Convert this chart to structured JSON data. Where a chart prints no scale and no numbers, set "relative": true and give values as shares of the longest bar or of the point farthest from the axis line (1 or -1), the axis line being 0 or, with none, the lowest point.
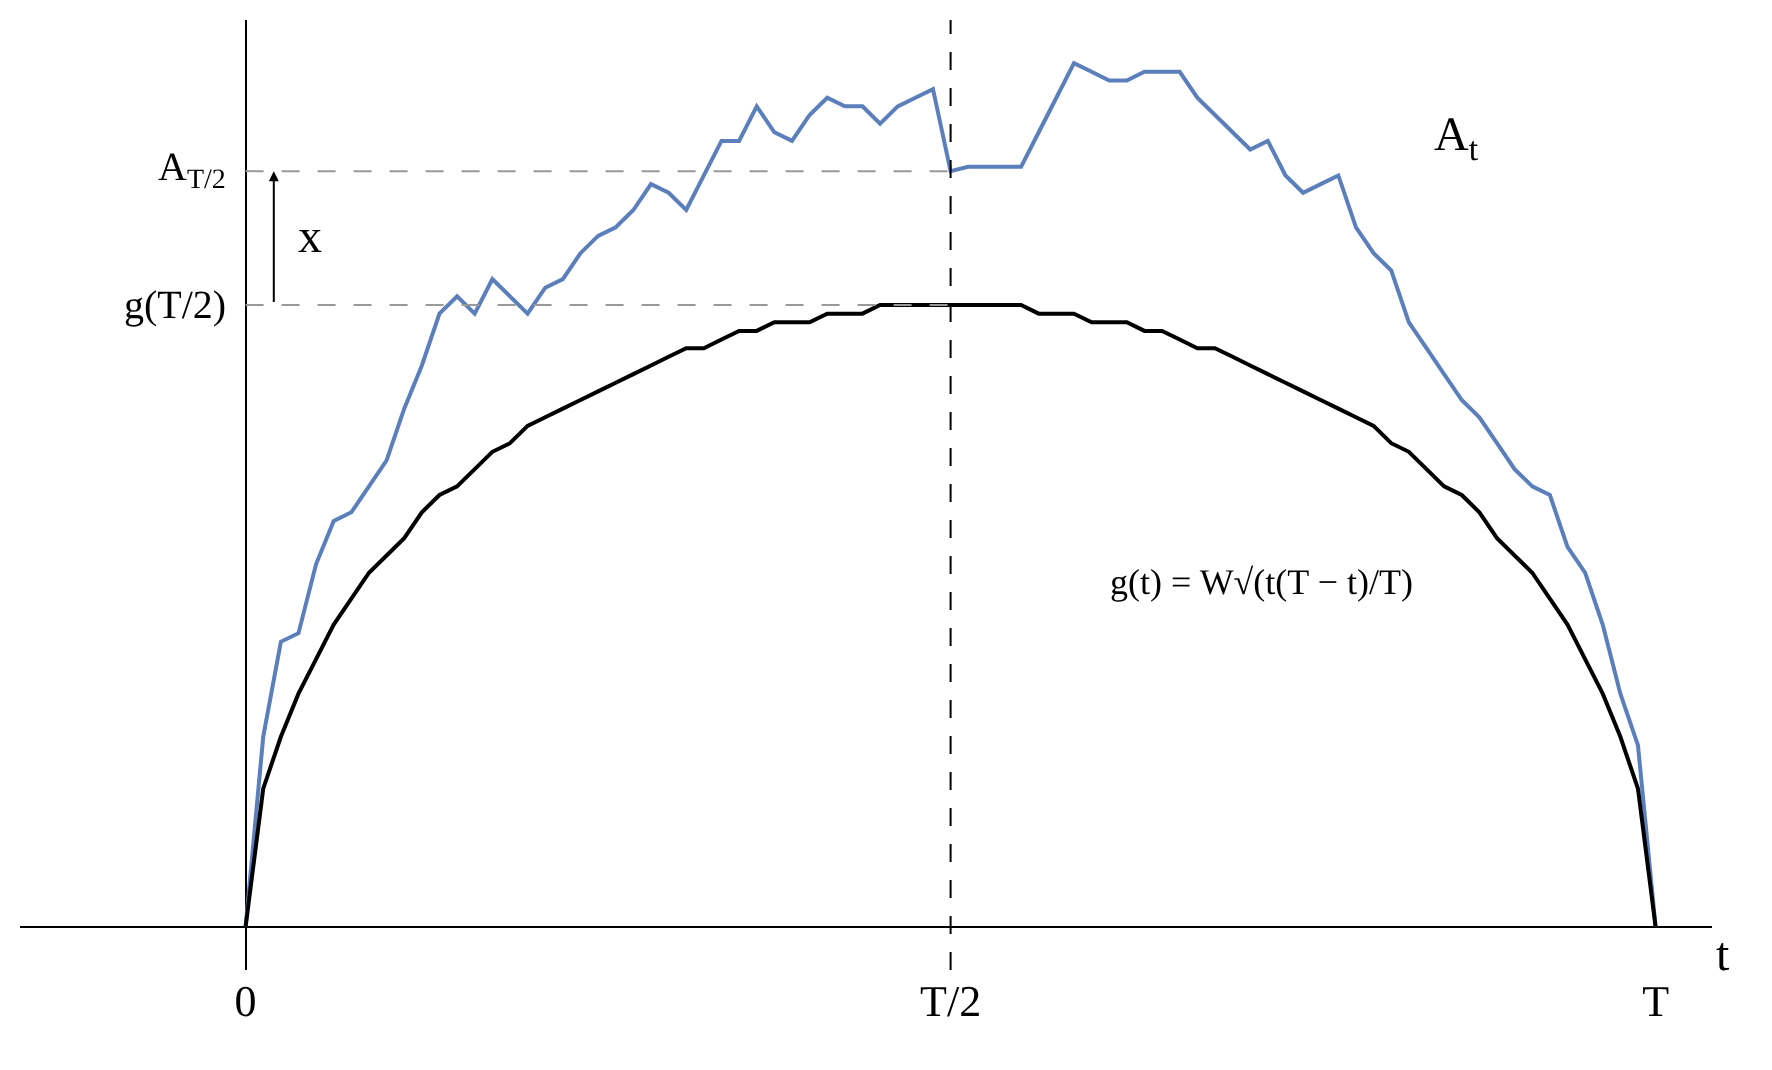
{
  "chart_data": {
    "type": "line",
    "relative": true,
    "xlabel": "t",
    "marker": "none",
    "categories": [
      "0",
      null,
      null,
      null,
      null,
      null,
      null,
      null,
      null,
      null,
      null,
      null,
      null,
      null,
      null,
      null,
      null,
      null,
      null,
      null,
      null,
      null,
      null,
      null,
      null,
      null,
      null,
      null,
      null,
      null,
      null,
      null,
      null,
      null,
      null,
      null,
      null,
      null,
      null,
      null,
      "T/2",
      null,
      null,
      null,
      null,
      null,
      null,
      null,
      null,
      null,
      null,
      null,
      null,
      null,
      null,
      null,
      null,
      null,
      null,
      null,
      null,
      null,
      null,
      null,
      null,
      null,
      null,
      null,
      null,
      null,
      null,
      null,
      null,
      null,
      null,
      null,
      null,
      null,
      null,
      null,
      "T"
    ],
    "series": [
      {
        "color": "#5b7fbb",
        "values": [
          0,
          0.22,
          0.33,
          0.34,
          0.42,
          0.47,
          0.48,
          0.51,
          0.54,
          0.6,
          0.65,
          0.71,
          0.73,
          0.71,
          0.75,
          0.73,
          0.71,
          0.74,
          0.75,
          0.78,
          0.8,
          0.81,
          0.83,
          0.86,
          0.85,
          0.83,
          0.87,
          0.91,
          0.91,
          0.95,
          0.92,
          0.91,
          0.94,
          0.96,
          0.95,
          0.95,
          0.93,
          0.95,
          0.96,
          0.97,
          0.875,
          0.88,
          0.88,
          0.88,
          0.88,
          0.92,
          0.96,
          1,
          0.99,
          0.98,
          0.98,
          0.99,
          0.99,
          0.99,
          0.96,
          0.94,
          0.92,
          0.9,
          0.91,
          0.87,
          0.85,
          0.86,
          0.87,
          0.81,
          0.78,
          0.76,
          0.7,
          0.67,
          0.64,
          0.61,
          0.59,
          0.56,
          0.53,
          0.51,
          0.5,
          0.44,
          0.41,
          0.35,
          0.27,
          0.21,
          0
        ]
      },
      {
        "color": "#000000",
        "values": [
          0,
          0.16,
          0.22,
          0.27,
          0.31,
          0.35,
          0.38,
          0.41,
          0.43,
          0.45,
          0.48,
          0.5,
          0.51,
          0.53,
          0.55,
          0.56,
          0.58,
          0.59,
          0.6,
          0.61,
          0.62,
          0.63,
          0.64,
          0.65,
          0.66,
          0.67,
          0.67,
          0.68,
          0.69,
          0.69,
          0.7,
          0.7,
          0.7,
          0.71,
          0.71,
          0.71,
          0.72,
          0.72,
          0.72,
          0.72,
          0.72,
          0.72,
          0.72,
          0.72,
          0.72,
          0.71,
          0.71,
          0.71,
          0.7,
          0.7,
          0.7,
          0.69,
          0.69,
          0.68,
          0.67,
          0.67,
          0.66,
          0.65,
          0.64,
          0.63,
          0.62,
          0.61,
          0.6,
          0.59,
          0.58,
          0.56,
          0.55,
          0.53,
          0.51,
          0.5,
          0.48,
          0.45,
          0.43,
          0.41,
          0.38,
          0.35,
          0.31,
          0.27,
          0.22,
          0.16,
          0
        ]
      }
    ],
    "ref_lines": [
      {
        "axis": "y",
        "value": 0.875,
        "label": "A$_{T/2}$",
        "color": "#999999",
        "line_style": "dashed"
      },
      {
        "axis": "y",
        "value": 0.72,
        "label": "g(T/2)",
        "color": "#999999",
        "line_style": "dashed"
      },
      {
        "axis": "x",
        "value": "T/2",
        "color": "#000000",
        "line_style": "dashed"
      }
    ],
    "annotations": [
      "A$_{t}$",
      "x",
      "g(t) = W√(t(T − t)/T)"
    ]
  }
}
